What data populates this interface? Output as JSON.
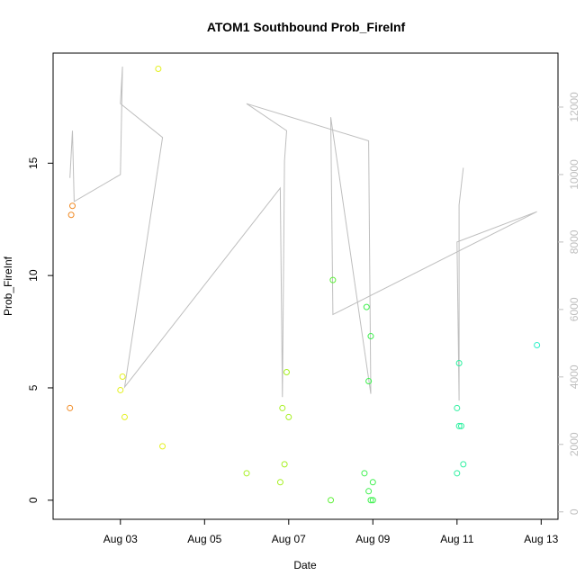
{
  "chart_data": {
    "type": "scatter",
    "title": "ATOM1 Southbound Prob_FireInf",
    "xlabel": "Date",
    "ylabel": "Prob_FireInf",
    "x_ticks": [
      {
        "x": 2.0,
        "label": "Aug 03"
      },
      {
        "x": 4.0,
        "label": "Aug 05"
      },
      {
        "x": 6.0,
        "label": "Aug 07"
      },
      {
        "x": 8.0,
        "label": "Aug 09"
      },
      {
        "x": 10.0,
        "label": "Aug 11"
      },
      {
        "x": 12.0,
        "label": "Aug 13"
      }
    ],
    "xlim": [
      0.4,
      12.4
    ],
    "ylim": [
      -0.85,
      19.9
    ],
    "y_ticks": [
      0,
      5,
      10,
      15
    ],
    "y2lim": [
      -220,
      13600
    ],
    "y2_ticks": [
      0,
      2000,
      4000,
      6000,
      8000,
      10000,
      12000
    ],
    "grid": false,
    "scatter_points": [
      {
        "x": 0.8,
        "y": 4.1,
        "color": "#f08a24"
      },
      {
        "x": 0.83,
        "y": 12.7,
        "color": "#f08a24"
      },
      {
        "x": 0.86,
        "y": 13.1,
        "color": "#f08a24"
      },
      {
        "x": 2.0,
        "y": 4.9,
        "color": "#e4f020"
      },
      {
        "x": 2.05,
        "y": 5.5,
        "color": "#e4f020"
      },
      {
        "x": 2.1,
        "y": 3.7,
        "color": "#e4f020"
      },
      {
        "x": 2.9,
        "y": 19.2,
        "color": "#e4f020"
      },
      {
        "x": 3.0,
        "y": 2.4,
        "color": "#e4f020"
      },
      {
        "x": 5.0,
        "y": 1.2,
        "color": "#a6f020"
      },
      {
        "x": 5.8,
        "y": 0.8,
        "color": "#a6f020"
      },
      {
        "x": 5.85,
        "y": 4.1,
        "color": "#a6f020"
      },
      {
        "x": 5.9,
        "y": 1.6,
        "color": "#a6f020"
      },
      {
        "x": 5.95,
        "y": 5.7,
        "color": "#a6f020"
      },
      {
        "x": 6.0,
        "y": 3.7,
        "color": "#a6f020"
      },
      {
        "x": 7.0,
        "y": 0.0,
        "color": "#5ef03a"
      },
      {
        "x": 7.05,
        "y": 9.8,
        "color": "#5ef03a"
      },
      {
        "x": 7.8,
        "y": 1.2,
        "color": "#3ef04e"
      },
      {
        "x": 7.85,
        "y": 8.6,
        "color": "#3ef04e"
      },
      {
        "x": 7.9,
        "y": 5.3,
        "color": "#3ef04e"
      },
      {
        "x": 7.9,
        "y": 0.4,
        "color": "#3ef04e"
      },
      {
        "x": 7.95,
        "y": 7.3,
        "color": "#3ef04e"
      },
      {
        "x": 7.95,
        "y": 0.0,
        "color": "#3ef04e"
      },
      {
        "x": 8.0,
        "y": 0.8,
        "color": "#3ef04e"
      },
      {
        "x": 8.0,
        "y": 0.0,
        "color": "#3ef04e"
      },
      {
        "x": 10.0,
        "y": 1.2,
        "color": "#2ef0a0"
      },
      {
        "x": 10.0,
        "y": 4.1,
        "color": "#2ef0a0"
      },
      {
        "x": 10.05,
        "y": 6.1,
        "color": "#2ef0a0"
      },
      {
        "x": 10.05,
        "y": 3.3,
        "color": "#2ef0a0"
      },
      {
        "x": 10.1,
        "y": 3.3,
        "color": "#2ef0a0"
      },
      {
        "x": 10.15,
        "y": 1.6,
        "color": "#2ef0a0"
      },
      {
        "x": 11.9,
        "y": 6.9,
        "color": "#2ef0c8"
      }
    ],
    "line_color": "#bebebe",
    "line_points": [
      {
        "x": 0.8,
        "y": 9900
      },
      {
        "x": 0.86,
        "y": 11300
      },
      {
        "x": 0.9,
        "y": 9200
      },
      {
        "x": 2.0,
        "y": 10000
      },
      {
        "x": 2.05,
        "y": 13200
      },
      {
        "x": 2.0,
        "y": 12100
      },
      {
        "x": 3.0,
        "y": 11100
      },
      {
        "x": 2.1,
        "y": 3700
      },
      {
        "x": 5.8,
        "y": 9600
      },
      {
        "x": 5.85,
        "y": 3400
      },
      {
        "x": 5.9,
        "y": 10400
      },
      {
        "x": 5.95,
        "y": 11300
      },
      {
        "x": 5.0,
        "y": 12100
      },
      {
        "x": 7.9,
        "y": 11000
      },
      {
        "x": 7.95,
        "y": 3500
      },
      {
        "x": 7.0,
        "y": 11700
      },
      {
        "x": 7.05,
        "y": 5850
      },
      {
        "x": 11.9,
        "y": 8900
      },
      {
        "x": 10.0,
        "y": 8000
      },
      {
        "x": 10.05,
        "y": 3300
      },
      {
        "x": 10.05,
        "y": 9100
      },
      {
        "x": 10.15,
        "y": 10200
      }
    ]
  }
}
